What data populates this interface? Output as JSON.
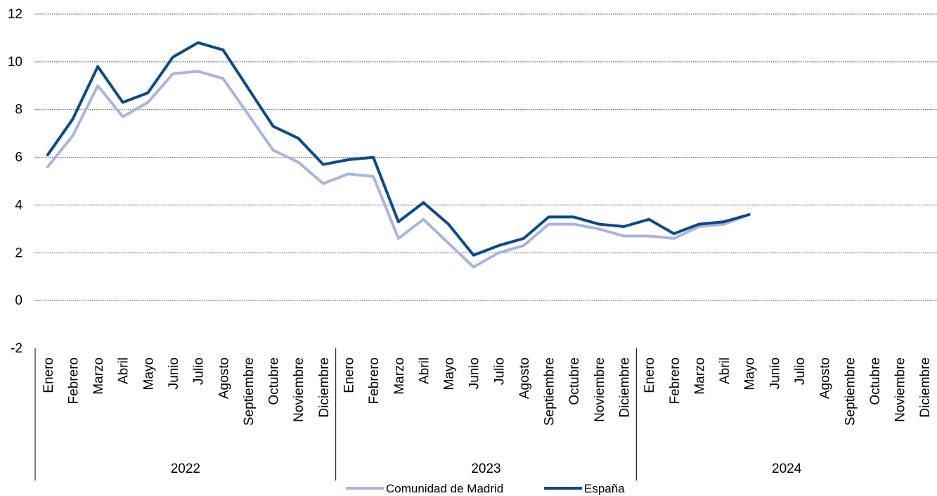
{
  "chart_data": {
    "type": "line",
    "ylim": [
      -2,
      12
    ],
    "y_ticks": [
      "12",
      "10",
      "8",
      "6",
      "4",
      "2",
      "0",
      "-2"
    ],
    "y_tick_values": [
      12,
      10,
      8,
      6,
      4,
      2,
      0,
      -2
    ],
    "grid": "horizontal dotted",
    "legend_position": "bottom-center",
    "colors": {
      "madrid": "#a8b5dc",
      "espana": "#0a4a8c"
    },
    "years": [
      {
        "label": "2022",
        "months": [
          "Enero",
          "Febrero",
          "Marzo",
          "Abril",
          "Mayo",
          "Junio",
          "Julio",
          "Agosto",
          "Septiembre",
          "Octubre",
          "Noviembre",
          "Diciembre"
        ]
      },
      {
        "label": "2023",
        "months": [
          "Enero",
          "Febrero",
          "Marzo",
          "Abril",
          "Mayo",
          "Junio",
          "Julio",
          "Agosto",
          "Septiembre",
          "Octubre",
          "Noviembre",
          "Diciembre"
        ]
      },
      {
        "label": "2024",
        "months": [
          "Enero",
          "Febrero",
          "Marzo",
          "Abril",
          "Mayo",
          "Junio",
          "Julio",
          "Agosto",
          "Septiembre",
          "Octubre",
          "Noviembre",
          "Diciembre"
        ]
      }
    ],
    "series": [
      {
        "name": "Comunidad de Madrid",
        "color": "#a8b5dc",
        "values": [
          5.6,
          6.9,
          9.0,
          7.7,
          8.3,
          9.5,
          9.6,
          9.3,
          7.8,
          6.3,
          5.8,
          4.9,
          5.3,
          5.2,
          2.6,
          3.4,
          2.4,
          1.4,
          2.0,
          2.3,
          3.2,
          3.2,
          3.0,
          2.7,
          2.7,
          2.6,
          3.1,
          3.2,
          3.6
        ]
      },
      {
        "name": "España",
        "color": "#0a4a8c",
        "values": [
          6.1,
          7.6,
          9.8,
          8.3,
          8.7,
          10.2,
          10.8,
          10.5,
          8.9,
          7.3,
          6.8,
          5.7,
          5.9,
          6.0,
          3.3,
          4.1,
          3.2,
          1.9,
          2.3,
          2.6,
          3.5,
          3.5,
          3.2,
          3.1,
          3.4,
          2.8,
          3.2,
          3.3,
          3.6
        ]
      }
    ]
  }
}
